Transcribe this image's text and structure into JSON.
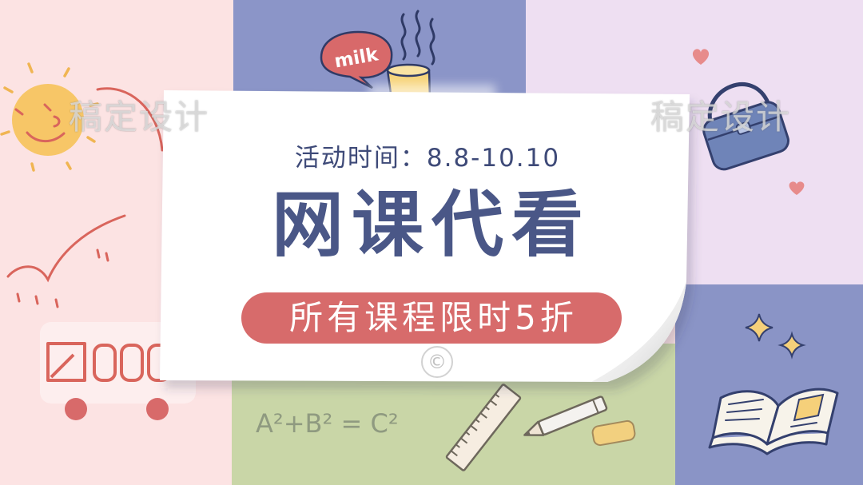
{
  "banner": {
    "event_time": "活动时间：8.8-10.10",
    "title": "网课代看",
    "promo": "所有课程限时5折"
  },
  "doodles": {
    "milk_label": "milk",
    "formula": "A²+B² = C²"
  },
  "watermark": {
    "left_text": "稿定设计",
    "right_text": "稿定设计",
    "copyright_mark": "©"
  },
  "icons": [
    "sun-icon",
    "milk-speech-bubble-icon",
    "coffee-cup-icon",
    "heart-icon",
    "handbag-icon",
    "sparkle-icon",
    "open-book-icon",
    "bus-icon",
    "ruler-icon",
    "pencil-icon",
    "eraser-icon"
  ],
  "colors": {
    "pink_panel": "#fce3e3",
    "blue_panel": "#8b95c8",
    "lavender_panel": "#eedff2",
    "green_panel": "#c9d6a7",
    "card": "#ffffff",
    "text_navy": "#4a5787",
    "accent_red": "#d76b6b",
    "sun_yellow": "#f7c667"
  }
}
